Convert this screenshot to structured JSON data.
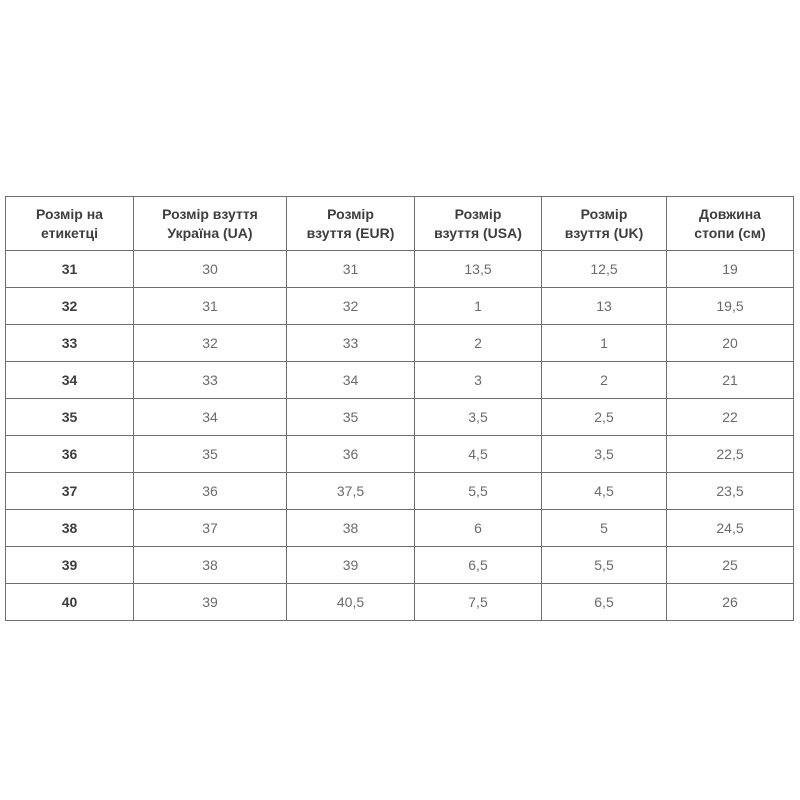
{
  "page": {
    "background_color": "#ffffff",
    "border_color": "#6e6e6e",
    "header_text_color": "#3e3e3e",
    "cell_text_color": "#6b6b6b"
  },
  "chart_data": {
    "type": "table",
    "title": "",
    "columns": [
      "Розмір на етикетці",
      "Розмір взуття Україна (UA)",
      "Розмір взуття (EUR)",
      "Розмір взуття (USA)",
      "Розмір взуття (UK)",
      "Довжина стопи (см)"
    ],
    "header_lines": [
      [
        "Розмір на",
        "етикетці"
      ],
      [
        "Розмір взуття",
        "Україна (UA)"
      ],
      [
        "Розмір",
        "взуття (EUR)"
      ],
      [
        "Розмір",
        "взуття (USA)"
      ],
      [
        "Розмір",
        "взуття (UK)"
      ],
      [
        "Довжина",
        "стопи (см)"
      ]
    ],
    "rows": [
      [
        "31",
        "30",
        "31",
        "13,5",
        "12,5",
        "19"
      ],
      [
        "32",
        "31",
        "32",
        "1",
        "13",
        "19,5"
      ],
      [
        "33",
        "32",
        "33",
        "2",
        "1",
        "20"
      ],
      [
        "34",
        "33",
        "34",
        "3",
        "2",
        "21"
      ],
      [
        "35",
        "34",
        "35",
        "3,5",
        "2,5",
        "22"
      ],
      [
        "36",
        "35",
        "36",
        "4,5",
        "3,5",
        "22,5"
      ],
      [
        "37",
        "36",
        "37,5",
        "5,5",
        "4,5",
        "23,5"
      ],
      [
        "38",
        "37",
        "38",
        "6",
        "5",
        "24,5"
      ],
      [
        "39",
        "38",
        "39",
        "6,5",
        "5,5",
        "25"
      ],
      [
        "40",
        "39",
        "40,5",
        "7,5",
        "6,5",
        "26"
      ]
    ]
  }
}
